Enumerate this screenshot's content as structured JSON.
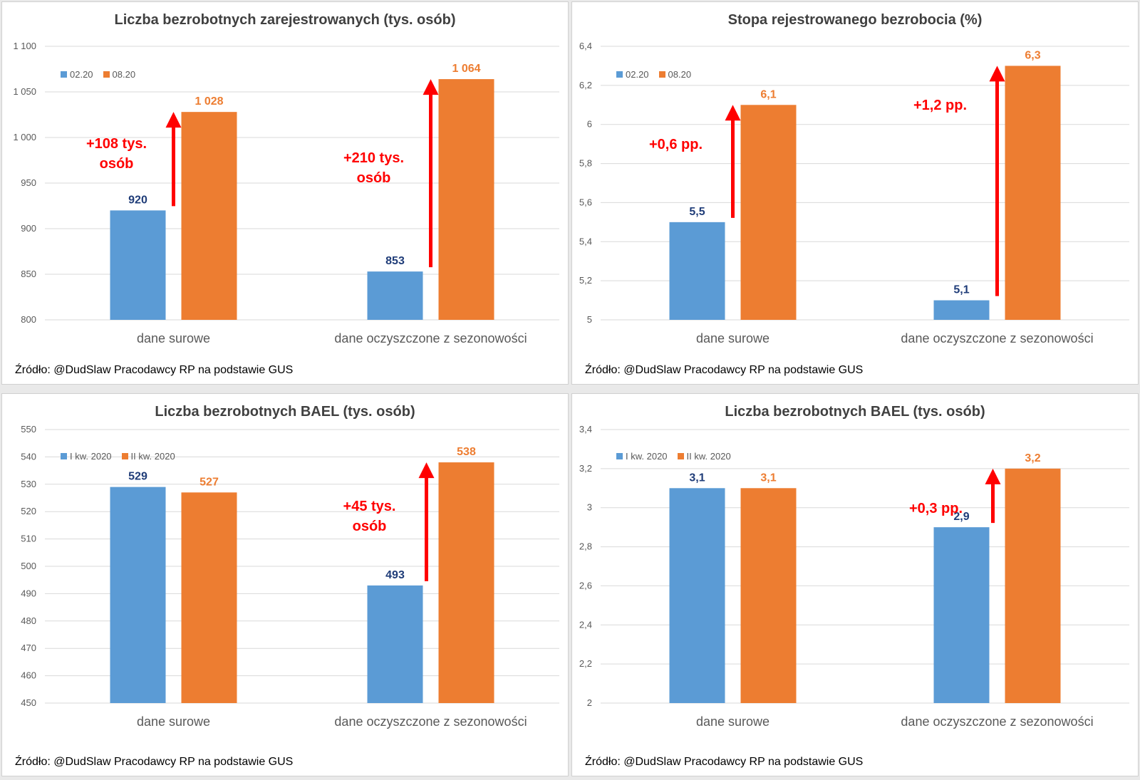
{
  "colors": {
    "series1": "#5b9bd5",
    "series2": "#ed7d31",
    "label1": "#1f3c78",
    "label2": "#ed7d31",
    "arrow": "#ff0000",
    "grid": "#d9d9d9",
    "axis": "#595959"
  },
  "charts": [
    {
      "chart_data": {
        "type": "bar",
        "title": "Liczba bezrobotnych zarejestrowanych (tys. osób)",
        "categories": [
          "dane surowe",
          "dane oczyszczone z sezonowości"
        ],
        "series": [
          {
            "name": "02.20",
            "values": [
              920,
              853
            ],
            "labels": [
              "920",
              "853"
            ]
          },
          {
            "name": "08.20",
            "values": [
              1028,
              1064
            ],
            "labels": [
              "1 028",
              "1 064"
            ]
          }
        ],
        "ylim": [
          800,
          1100
        ],
        "yticks": [
          800,
          850,
          900,
          950,
          1000,
          1050,
          1100
        ],
        "ytick_labels": [
          "800",
          "850",
          "900",
          "950",
          "1 000",
          "1 050",
          "1 100"
        ],
        "legend": "top-left",
        "annotations": [
          "+108 tys.\nosób",
          "+210 tys.\nosób"
        ]
      },
      "source": "Źródło: @DudSlaw Pracodawcy RP na podstawie GUS"
    },
    {
      "chart_data": {
        "type": "bar",
        "title": "Stopa rejestrowanego bezrobocia (%)",
        "categories": [
          "dane surowe",
          "dane oczyszczone z sezonowości"
        ],
        "series": [
          {
            "name": "02.20",
            "values": [
              5.5,
              5.1
            ],
            "labels": [
              "5,5",
              "5,1"
            ]
          },
          {
            "name": "08.20",
            "values": [
              6.1,
              6.3
            ],
            "labels": [
              "6,1",
              "6,3"
            ]
          }
        ],
        "ylim": [
          5,
          6.4
        ],
        "yticks": [
          5,
          5.2,
          5.4,
          5.6,
          5.8,
          6,
          6.2,
          6.4
        ],
        "ytick_labels": [
          "5",
          "5,2",
          "5,4",
          "5,6",
          "5,8",
          "6",
          "6,2",
          "6,4"
        ],
        "legend": "top-left",
        "annotations": [
          "+0,6 pp.",
          "+1,2 pp."
        ]
      },
      "source": "Źródło: @DudSlaw Pracodawcy RP na podstawie GUS"
    },
    {
      "chart_data": {
        "type": "bar",
        "title": "Liczba bezrobotnych BAEL (tys. osób)",
        "categories": [
          "dane surowe",
          "dane oczyszczone z sezonowości"
        ],
        "series": [
          {
            "name": "I kw. 2020",
            "values": [
              529,
              493
            ],
            "labels": [
              "529",
              "493"
            ]
          },
          {
            "name": "II kw. 2020",
            "values": [
              527,
              538
            ],
            "labels": [
              "527",
              "538"
            ]
          }
        ],
        "ylim": [
          450,
          550
        ],
        "yticks": [
          450,
          460,
          470,
          480,
          490,
          500,
          510,
          520,
          530,
          540,
          550
        ],
        "ytick_labels": [
          "450",
          "460",
          "470",
          "480",
          "490",
          "500",
          "510",
          "520",
          "530",
          "540",
          "550"
        ],
        "legend": "top-left",
        "annotations": [
          "",
          "+45 tys.\nosób"
        ]
      },
      "source": "Źródło: @DudSlaw Pracodawcy RP na podstawie GUS"
    },
    {
      "chart_data": {
        "type": "bar",
        "title": "Liczba bezrobotnych BAEL (tys. osób)",
        "categories": [
          "dane surowe",
          "dane oczyszczone z sezonowości"
        ],
        "series": [
          {
            "name": "I kw. 2020",
            "values": [
              3.1,
              2.9
            ],
            "labels": [
              "3,1",
              "2,9"
            ]
          },
          {
            "name": "II kw. 2020",
            "values": [
              3.1,
              3.2
            ],
            "labels": [
              "3,1",
              "3,2"
            ]
          }
        ],
        "ylim": [
          2,
          3.4
        ],
        "yticks": [
          2,
          2.2,
          2.4,
          2.6,
          2.8,
          3,
          3.2,
          3.4
        ],
        "ytick_labels": [
          "2",
          "2,2",
          "2,4",
          "2,6",
          "2,8",
          "3",
          "3,2",
          "3,4"
        ],
        "legend": "top-left",
        "annotations": [
          "",
          "+0,3 pp."
        ]
      },
      "source": "Źródło: @DudSlaw Pracodawcy RP na podstawie GUS"
    }
  ]
}
